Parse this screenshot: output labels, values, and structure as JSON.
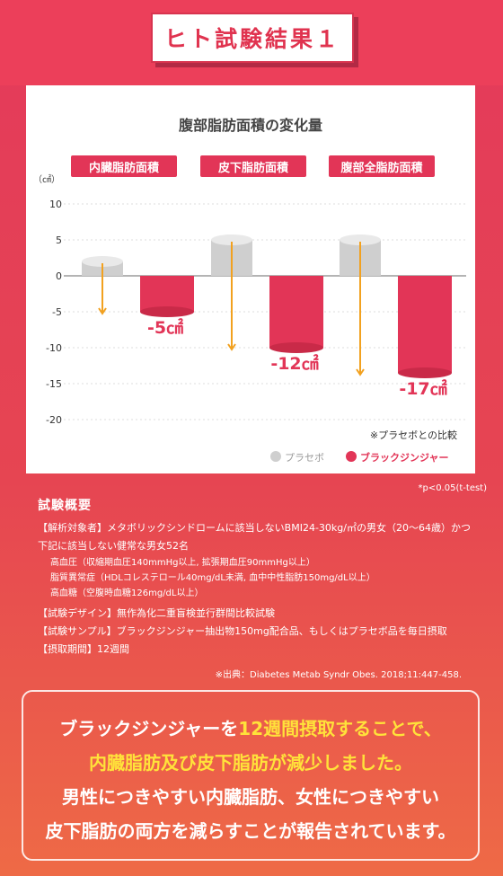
{
  "header": {
    "title": "ヒト試験結果１"
  },
  "chart_data": {
    "type": "bar",
    "title": "腹部脂肪面積の変化量",
    "unit_label": "（㎠）",
    "ylim": [
      -20,
      10
    ],
    "yticks": [
      "10",
      "5",
      "0",
      "-5",
      "-10",
      "-15",
      "-20"
    ],
    "ytick_values": [
      10,
      5,
      0,
      -5,
      -10,
      -15,
      -20
    ],
    "categories": [
      "内臓脂肪面積",
      "皮下脂肪面積",
      "腹部全脂肪面積"
    ],
    "series": [
      {
        "name": "プラセボ",
        "values": [
          2,
          5,
          5
        ],
        "color": "#cfcfcf"
      },
      {
        "name": "ブラックジンジャー",
        "values": [
          -5,
          -10,
          -13.5
        ],
        "color": "#e23557"
      }
    ],
    "data_labels": [
      "-5㎠",
      "-12㎠",
      "-17㎠"
    ],
    "note": "※プラセボとの比較",
    "arrow_color": "#f2a11f",
    "grid": true
  },
  "p_value": "*p<0.05(t-test)",
  "summary": {
    "title": "試験概要",
    "line1": "【解析対象者】メタボリックシンドロームに該当しないBMI24-30kg/㎡の男女（20〜64歳）かつ",
    "line2": "下記に該当しない健常な男女52名",
    "sub1": "高血圧（収縮期血圧140mmHg以上, 拡張期血圧90mmHg以上）",
    "sub2": "脂質異常症（HDLコレステロール40mg/dL未満, 血中中性脂肪150mg/dL以上）",
    "sub3": "高血糖（空腹時血糖126mg/dL以上）",
    "design": "【試験デザイン】無作為化二重盲検並行群間比較試験",
    "sample": "【試験サンプル】ブラックジンジャー抽出物150mg配合品、もしくはプラセボ品を毎日摂取",
    "period": "【摂取期間】12週間"
  },
  "source": "※出典：Diabetes Metab Syndr Obes. 2018;11:447-458.",
  "conclusion": {
    "l1a": "ブラックジンジャーを",
    "l1b": "12週間摂取することで、",
    "l2": "内臓脂肪及び皮下脂肪が減少しました。",
    "l3": "男性につきやすい内臓脂肪、女性につきやすい",
    "l4": "皮下脂肪の両方を減らすことが報告されています。"
  },
  "colors": {
    "accent": "#e23557",
    "highlight": "#ffe23a"
  }
}
